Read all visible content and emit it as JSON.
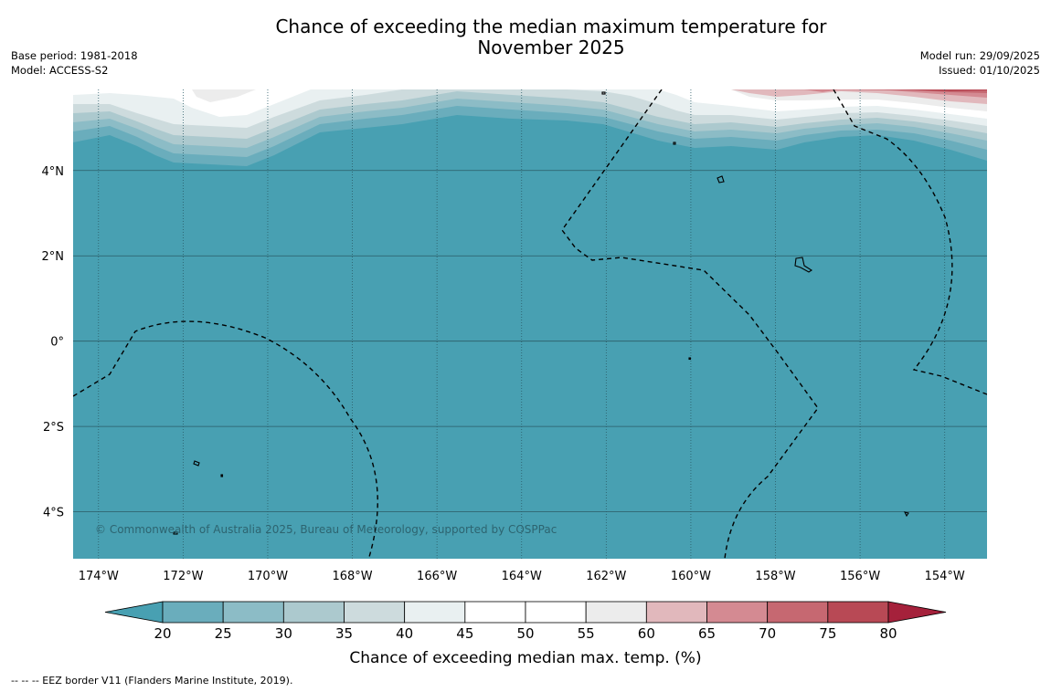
{
  "title_line1": "Chance of exceeding the median maximum temperature for",
  "title_line2": "November 2025",
  "base_period": "Base period: 1981-2018",
  "model": "Model: ACCESS-S2",
  "model_run": "Model run: 29/09/2025",
  "issued": "Issued: 01/10/2025",
  "copyright": "© Commonwealth of Australia 2025, Bureau of Meteorology, supported by COSPPac",
  "footnote": "--  --  -- EEZ border V11 (Flanders Marine Institute, 2019).",
  "colors": {
    "ocean_below20": "#48a0b2",
    "land_outline": "#000000",
    "border_dash": "#000000"
  },
  "longitude_labels": [
    "174°W",
    "172°W",
    "170°W",
    "168°W",
    "166°W",
    "164°W",
    "162°W",
    "160°W",
    "158°W",
    "156°W",
    "154°W"
  ],
  "latitude_labels": [
    "4°N",
    "2°N",
    "0°",
    "2°S",
    "4°S"
  ],
  "map_extent": {
    "lon_min": -174.6,
    "lon_max": -153.0,
    "lat_min": -5.1,
    "lat_max": 5.9
  },
  "legend": {
    "title": "Chance of exceeding median max. temp. (%)",
    "ticks": [
      "20",
      "25",
      "30",
      "35",
      "40",
      "45",
      "50",
      "55",
      "60",
      "65",
      "70",
      "75",
      "80"
    ],
    "bins": [
      {
        "range": "<20",
        "color": "#48a0b2"
      },
      {
        "range": "20-25",
        "color": "#6aadbc"
      },
      {
        "range": "25-30",
        "color": "#8cbcc6"
      },
      {
        "range": "30-35",
        "color": "#acc9ce"
      },
      {
        "range": "35-40",
        "color": "#cddbdd"
      },
      {
        "range": "40-45",
        "color": "#e9f0f1"
      },
      {
        "range": "45-50",
        "color": "#ffffff"
      },
      {
        "range": "50-55",
        "color": "#ffffff"
      },
      {
        "range": "55-60",
        "color": "#ececec"
      },
      {
        "range": "60-65",
        "color": "#e1b8bc"
      },
      {
        "range": "65-70",
        "color": "#d48a92"
      },
      {
        "range": "70-75",
        "color": "#c66871"
      },
      {
        "range": "75-80",
        "color": "#b84955"
      },
      {
        "range": ">80",
        "color": "#a5213b"
      }
    ]
  }
}
